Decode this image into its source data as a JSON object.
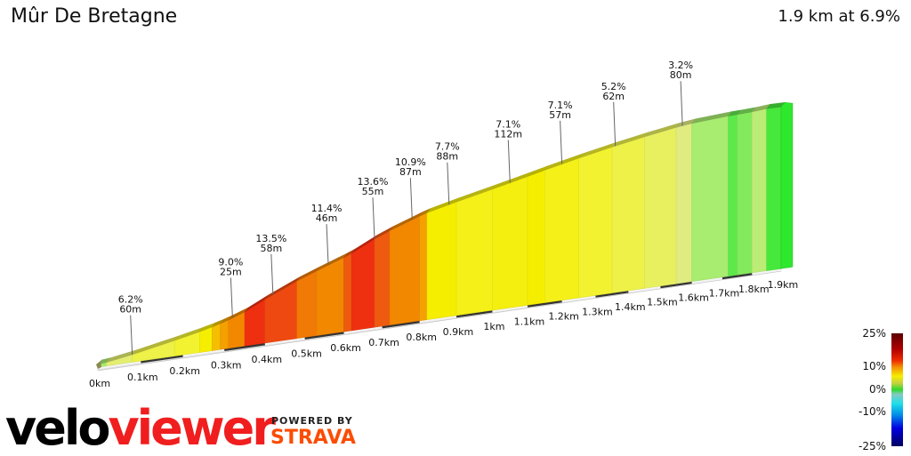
{
  "header": {
    "title": "Mûr De Bretagne",
    "summary": "1.9 km at 6.9%"
  },
  "chart_data": {
    "type": "area",
    "title": "Mûr De Bretagne",
    "distance_unit": "km",
    "xlim": [
      0,
      1.9
    ],
    "x_ticks": [
      "0km",
      "0.1km",
      "0.2km",
      "0.3km",
      "0.4km",
      "0.5km",
      "0.6km",
      "0.7km",
      "0.8km",
      "0.9km",
      "1km",
      "1.1km",
      "1.2km",
      "1.3km",
      "1.4km",
      "1.5km",
      "1.6km",
      "1.7km",
      "1.8km",
      "1.9km"
    ],
    "segments": [
      {
        "from": 0,
        "to": 0.02,
        "gradient": 3
      },
      {
        "from": 0.02,
        "to": 0.08,
        "gradient": 5
      },
      {
        "from": 0.08,
        "to": 0.18,
        "gradient": 6
      },
      {
        "from": 0.18,
        "to": 0.24,
        "gradient": 6.5
      },
      {
        "from": 0.24,
        "to": 0.27,
        "gradient": 7.5
      },
      {
        "from": 0.27,
        "to": 0.29,
        "gradient": 8.5
      },
      {
        "from": 0.29,
        "to": 0.31,
        "gradient": 9.5
      },
      {
        "from": 0.31,
        "to": 0.35,
        "gradient": 11
      },
      {
        "from": 0.35,
        "to": 0.4,
        "gradient": 15
      },
      {
        "from": 0.4,
        "to": 0.48,
        "gradient": 13.5
      },
      {
        "from": 0.48,
        "to": 0.53,
        "gradient": 11.5
      },
      {
        "from": 0.53,
        "to": 0.6,
        "gradient": 11
      },
      {
        "from": 0.6,
        "to": 0.62,
        "gradient": 12.5
      },
      {
        "from": 0.62,
        "to": 0.68,
        "gradient": 15
      },
      {
        "from": 0.68,
        "to": 0.72,
        "gradient": 12.5
      },
      {
        "from": 0.72,
        "to": 0.8,
        "gradient": 11
      },
      {
        "from": 0.8,
        "to": 0.82,
        "gradient": 9.5
      },
      {
        "from": 0.82,
        "to": 0.9,
        "gradient": 7.5
      },
      {
        "from": 0.9,
        "to": 1.0,
        "gradient": 7
      },
      {
        "from": 1.0,
        "to": 1.1,
        "gradient": 7.2
      },
      {
        "from": 1.1,
        "to": 1.15,
        "gradient": 7.5
      },
      {
        "from": 1.15,
        "to": 1.25,
        "gradient": 7
      },
      {
        "from": 1.25,
        "to": 1.35,
        "gradient": 6.5
      },
      {
        "from": 1.35,
        "to": 1.45,
        "gradient": 6
      },
      {
        "from": 1.45,
        "to": 1.55,
        "gradient": 5.5
      },
      {
        "from": 1.55,
        "to": 1.6,
        "gradient": 4.5
      },
      {
        "from": 1.6,
        "to": 1.72,
        "gradient": 3
      },
      {
        "from": 1.72,
        "to": 1.75,
        "gradient": 2
      },
      {
        "from": 1.75,
        "to": 1.8,
        "gradient": 2.5
      },
      {
        "from": 1.8,
        "to": 1.85,
        "gradient": 3.5
      },
      {
        "from": 1.85,
        "to": 1.9,
        "gradient": 1
      }
    ],
    "annotations": [
      {
        "distance": 0.08,
        "gradient": "6.2%",
        "length": "60m"
      },
      {
        "distance": 0.32,
        "gradient": "9.0%",
        "length": "25m"
      },
      {
        "distance": 0.42,
        "gradient": "13.5%",
        "length": "58m"
      },
      {
        "distance": 0.56,
        "gradient": "11.4%",
        "length": "46m"
      },
      {
        "distance": 0.68,
        "gradient": "13.6%",
        "length": "55m"
      },
      {
        "distance": 0.78,
        "gradient": "10.9%",
        "length": "87m"
      },
      {
        "distance": 0.88,
        "gradient": "7.7%",
        "length": "88m"
      },
      {
        "distance": 1.05,
        "gradient": "7.1%",
        "length": "112m"
      },
      {
        "distance": 1.2,
        "gradient": "7.1%",
        "length": "57m"
      },
      {
        "distance": 1.36,
        "gradient": "5.2%",
        "length": "62m"
      },
      {
        "distance": 1.57,
        "gradient": "3.2%",
        "length": "80m"
      }
    ]
  },
  "legend": {
    "labels": [
      "25%",
      "10%",
      "0%",
      "-10%",
      "-25%"
    ]
  },
  "branding": {
    "logo_part1": "velo",
    "logo_part2": "viewer",
    "powered_by": "POWERED BY",
    "strava": "STRAVA"
  }
}
